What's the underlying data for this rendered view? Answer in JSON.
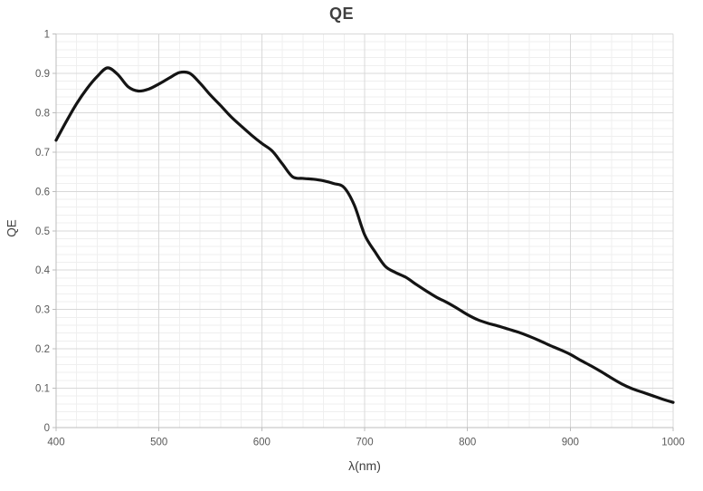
{
  "chart_data": {
    "type": "line",
    "title": "QE",
    "xlabel": "λ(nm)",
    "ylabel": "QE",
    "xlim": [
      400,
      1000
    ],
    "ylim": [
      0,
      1
    ],
    "x_ticks": [
      400,
      500,
      600,
      700,
      800,
      900,
      1000
    ],
    "x_tick_labels": [
      "400",
      "500",
      "600",
      "700",
      "800",
      "900",
      "1000"
    ],
    "y_ticks": [
      0,
      0.1,
      0.2,
      0.3,
      0.4,
      0.5,
      0.6,
      0.7,
      0.8,
      0.9,
      1
    ],
    "y_tick_labels": [
      "0",
      "0.1",
      "0.2",
      "0.3",
      "0.4",
      "0.5",
      "0.6",
      "0.7",
      "0.8",
      "0.9",
      "1"
    ],
    "x_minor_step": 20,
    "y_minor_step": 0.02,
    "grid": "major+minor",
    "legend": "none",
    "series": [
      {
        "name": "QE",
        "x": [
          400,
          410,
          420,
          430,
          440,
          450,
          460,
          470,
          480,
          490,
          500,
          510,
          520,
          530,
          540,
          550,
          560,
          570,
          580,
          590,
          600,
          610,
          620,
          630,
          640,
          650,
          660,
          670,
          680,
          690,
          700,
          710,
          720,
          730,
          740,
          750,
          760,
          770,
          780,
          790,
          800,
          810,
          820,
          830,
          840,
          850,
          860,
          870,
          880,
          890,
          900,
          910,
          920,
          930,
          940,
          950,
          960,
          970,
          980,
          990,
          1000
        ],
        "y": [
          0.73,
          0.778,
          0.823,
          0.861,
          0.892,
          0.914,
          0.897,
          0.866,
          0.855,
          0.86,
          0.873,
          0.888,
          0.902,
          0.9,
          0.875,
          0.845,
          0.818,
          0.79,
          0.766,
          0.743,
          0.722,
          0.703,
          0.67,
          0.637,
          0.633,
          0.631,
          0.627,
          0.62,
          0.61,
          0.565,
          0.49,
          0.447,
          0.41,
          0.394,
          0.382,
          0.364,
          0.347,
          0.331,
          0.318,
          0.303,
          0.287,
          0.274,
          0.265,
          0.258,
          0.25,
          0.242,
          0.232,
          0.221,
          0.209,
          0.198,
          0.186,
          0.171,
          0.157,
          0.142,
          0.126,
          0.111,
          0.099,
          0.09,
          0.081,
          0.072,
          0.064
        ]
      }
    ],
    "colors": {
      "line": "#141414",
      "major_grid": "#d8d8d8",
      "minor_grid": "#efefef",
      "axis": "#bdbdbd",
      "tick_label": "#595959",
      "title_text": "#404040"
    }
  }
}
